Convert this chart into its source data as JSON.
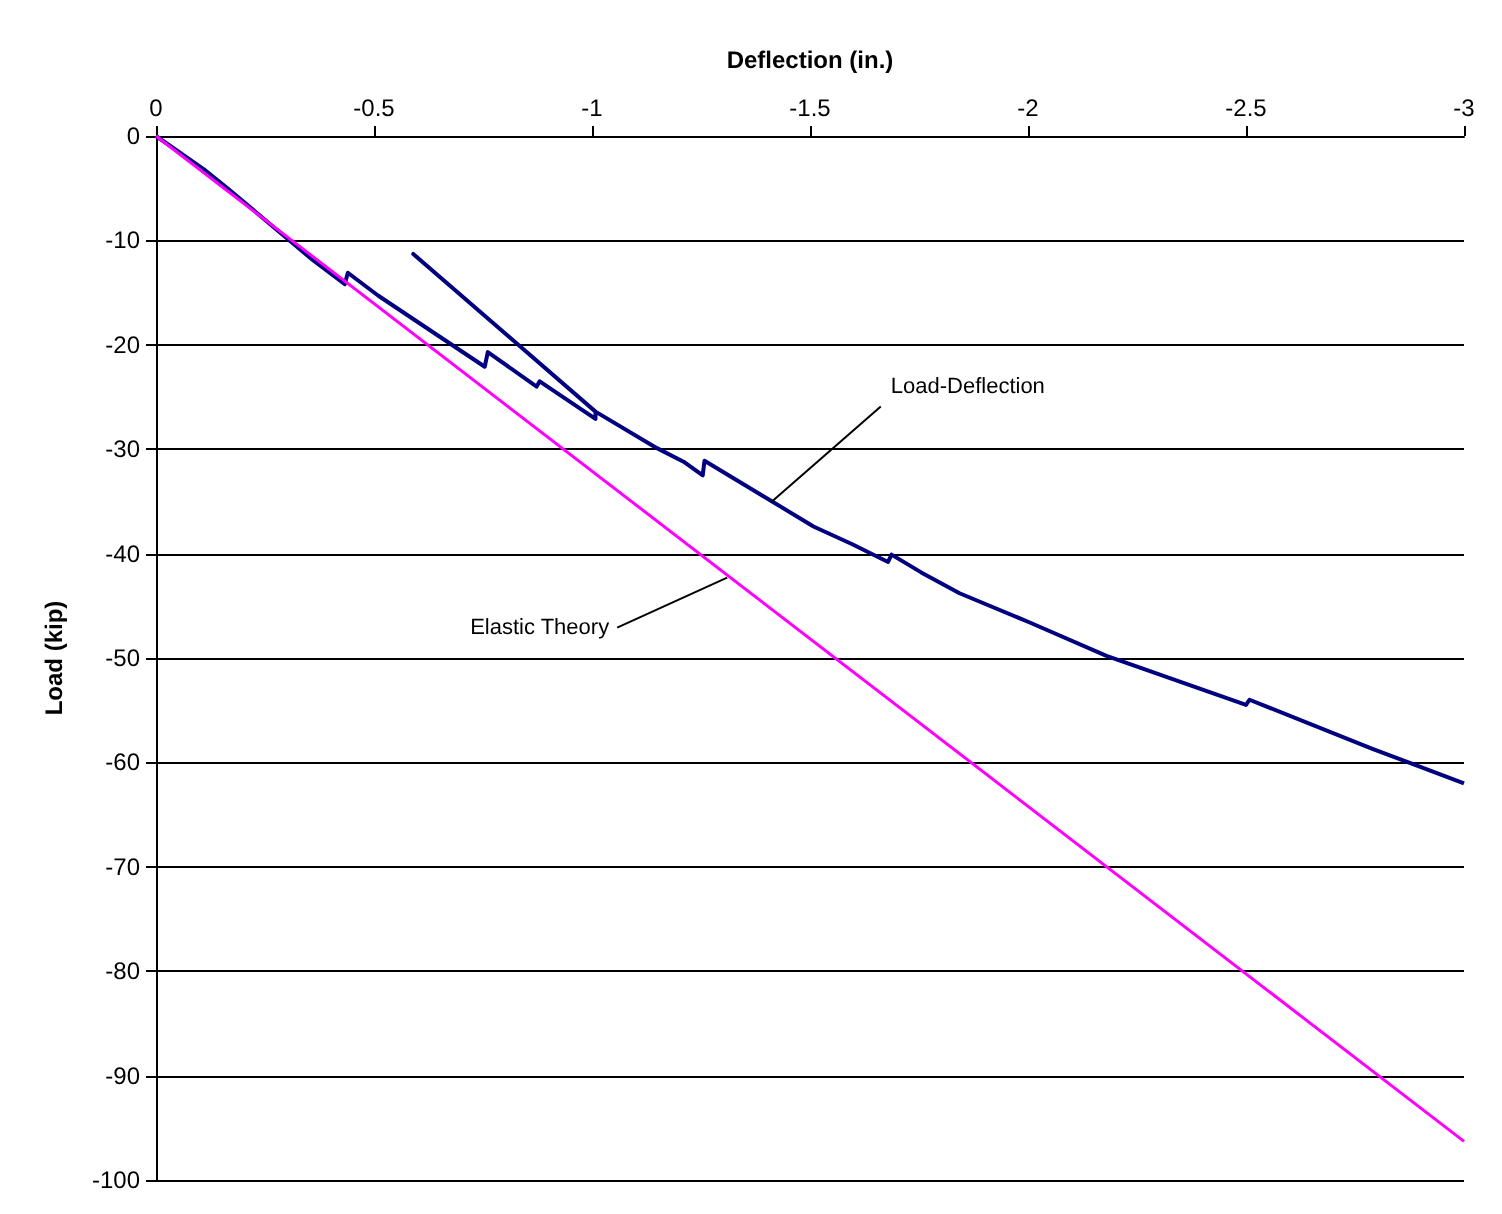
{
  "chart_data": {
    "type": "line",
    "xlabel": "Deflection (in.)",
    "ylabel": "Load (kip)",
    "xlim": [
      0,
      -3
    ],
    "xticks": [
      0,
      -0.5,
      -1,
      -1.5,
      -2,
      -2.5,
      -3
    ],
    "ylim": [
      -100,
      0
    ],
    "yticks": [
      -100,
      -90,
      -80,
      -70,
      -60,
      -50,
      -40,
      -30,
      -20,
      -10,
      0
    ],
    "grid": "y",
    "marker": "none",
    "line_style": "solid",
    "series": [
      {
        "color": "#000080",
        "x": [
          0,
          -0.11,
          -0.164,
          -0.36,
          -0.433,
          -0.44,
          -0.51,
          -0.754,
          -0.761,
          -0.873,
          -0.88,
          -1.008,
          -1.008,
          -0.59,
          -1.008,
          -1.149,
          -1.21,
          -1.254,
          -1.258,
          -1.508,
          -1.597,
          -1.679,
          -1.687,
          -1.755,
          -1.843,
          -2.004,
          -2.18,
          -2.5,
          -2.508,
          -2.79,
          -3
        ],
        "values": [
          0,
          -3.2,
          -5,
          -11.9,
          -14.2,
          -13.1,
          -15.3,
          -22.1,
          -20.7,
          -24,
          -23.5,
          -27.1,
          -26.4,
          -11.3,
          -26.4,
          -29.9,
          -31.2,
          -32.5,
          -31.1,
          -37.4,
          -39.1,
          -40.8,
          -40.1,
          -41.8,
          -43.8,
          -46.6,
          -49.8,
          -54.5,
          -54,
          -58.7,
          -62
        ]
      },
      {
        "color": "#ff00ff",
        "x": [
          0,
          -3
        ],
        "values": [
          0,
          -96.3
        ]
      }
    ],
    "annotations": [
      {
        "text": "Load-Deflection",
        "x": -1.41,
        "y": -35.1
      },
      {
        "text": "Elastic Theory",
        "x": -1.31,
        "y": -42.3
      }
    ]
  }
}
